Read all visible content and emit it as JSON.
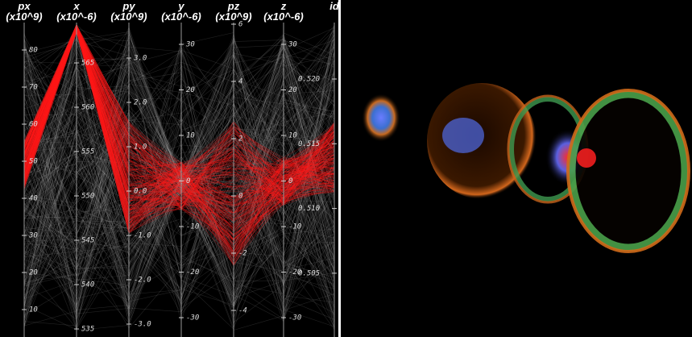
{
  "parallel_coordinates": {
    "axes": [
      {
        "name": "px",
        "unit": "(x10^9)",
        "ticks": [
          "80",
          "70",
          "60",
          "50",
          "40",
          "30",
          "20",
          "10"
        ]
      },
      {
        "name": "x",
        "unit": "(x10^-6)",
        "ticks": [
          "565",
          "560",
          "555",
          "550",
          "545",
          "540",
          "535"
        ]
      },
      {
        "name": "py",
        "unit": "(x10^9)",
        "ticks": [
          "3.0",
          "2.0",
          "1.0",
          "0.0",
          "-1.0",
          "-2.0",
          "-3.0"
        ]
      },
      {
        "name": "y",
        "unit": "(x10^-6)",
        "ticks": [
          "30",
          "20",
          "10",
          "0",
          "-10",
          "-20",
          "-30"
        ]
      },
      {
        "name": "pz",
        "unit": "(x10^9)",
        "ticks": [
          "6",
          "4",
          "2",
          "0",
          "-2",
          "-4"
        ]
      },
      {
        "name": "z",
        "unit": "(x10^-6)",
        "ticks": [
          "30",
          "20",
          "10",
          "0",
          "-10",
          "-20",
          "-30"
        ]
      },
      {
        "name": "id",
        "unit": "",
        "ticks": [
          "0.520",
          "0.515",
          "0.510",
          "0.505"
        ]
      }
    ]
  }
}
